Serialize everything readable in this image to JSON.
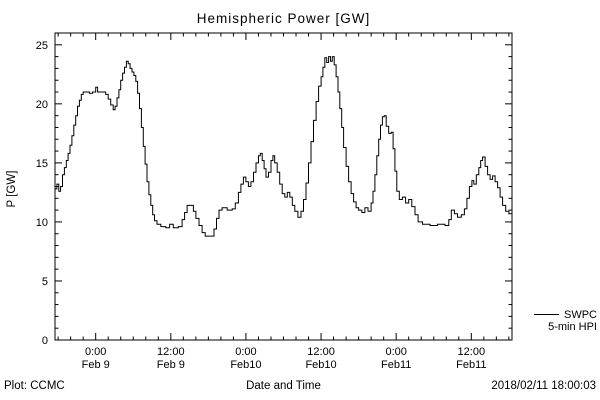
{
  "footer": {
    "left": "Plot: CCMC",
    "timestamp": "2018/02/11 18:00:03"
  },
  "chart_data": {
    "type": "line",
    "step": true,
    "title": "Hemispheric Power [GW]",
    "xlabel": "Date and Time",
    "ylabel": "P [GW]",
    "ylim": [
      0,
      26
    ],
    "yticks": [
      0,
      5,
      10,
      15,
      20,
      25
    ],
    "yminor": 1,
    "xlim_hours": [
      -6.5,
      66.5
    ],
    "xminor": 2,
    "grid": false,
    "line_color": "#000000",
    "background_color": "#ffffff",
    "legend": {
      "label1": "SWPC",
      "label2": "5-min HPI",
      "position": "right-outside-bottom"
    },
    "xticks": [
      {
        "hour": 0,
        "l1": "0:00",
        "l2": "Feb 9"
      },
      {
        "hour": 12,
        "l1": "12:00",
        "l2": "Feb 9"
      },
      {
        "hour": 24,
        "l1": "0:00",
        "l2": "Feb10"
      },
      {
        "hour": 36,
        "l1": "12:00",
        "l2": "Feb10"
      },
      {
        "hour": 48,
        "l1": "0:00",
        "l2": "Feb11"
      },
      {
        "hour": 60,
        "l1": "12:00",
        "l2": "Feb11"
      }
    ],
    "series": [
      {
        "name": "SWPC 5-min HPI",
        "color": "#000000",
        "points_hours_gw": [
          [
            -6.5,
            12.8
          ],
          [
            -6.2,
            13.2
          ],
          [
            -5.9,
            12.6
          ],
          [
            -5.6,
            13.0
          ],
          [
            -5.3,
            14.0
          ],
          [
            -5.0,
            14.6
          ],
          [
            -4.7,
            15.2
          ],
          [
            -4.4,
            15.8
          ],
          [
            -4.1,
            16.5
          ],
          [
            -3.8,
            17.3
          ],
          [
            -3.5,
            18.2
          ],
          [
            -3.2,
            19.0
          ],
          [
            -2.9,
            19.8
          ],
          [
            -2.6,
            20.3
          ],
          [
            -2.3,
            20.8
          ],
          [
            -2.0,
            21.0
          ],
          [
            -1.0,
            20.9
          ],
          [
            -0.5,
            21.0
          ],
          [
            0.0,
            21.4
          ],
          [
            0.3,
            21.0
          ],
          [
            1.2,
            21.0
          ],
          [
            1.6,
            20.8
          ],
          [
            2.0,
            20.4
          ],
          [
            2.4,
            19.9
          ],
          [
            2.8,
            19.5
          ],
          [
            3.1,
            19.8
          ],
          [
            3.4,
            20.5
          ],
          [
            3.7,
            21.2
          ],
          [
            4.0,
            22.0
          ],
          [
            4.3,
            22.6
          ],
          [
            4.6,
            23.1
          ],
          [
            4.9,
            23.6
          ],
          [
            5.2,
            23.4
          ],
          [
            5.5,
            23.0
          ],
          [
            5.8,
            22.7
          ],
          [
            6.1,
            22.4
          ],
          [
            6.4,
            21.9
          ],
          [
            6.7,
            20.9
          ],
          [
            7.0,
            19.6
          ],
          [
            7.3,
            18.0
          ],
          [
            7.6,
            16.4
          ],
          [
            7.9,
            14.9
          ],
          [
            8.2,
            13.4
          ],
          [
            8.5,
            12.3
          ],
          [
            8.8,
            11.4
          ],
          [
            9.1,
            10.6
          ],
          [
            9.4,
            10.1
          ],
          [
            9.8,
            9.8
          ],
          [
            10.4,
            9.6
          ],
          [
            11.2,
            9.5
          ],
          [
            11.8,
            9.8
          ],
          [
            12.4,
            9.5
          ],
          [
            13.2,
            9.6
          ],
          [
            13.8,
            10.2
          ],
          [
            14.2,
            10.8
          ],
          [
            14.6,
            11.4
          ],
          [
            15.2,
            11.4
          ],
          [
            15.6,
            10.9
          ],
          [
            16.0,
            10.3
          ],
          [
            16.5,
            9.7
          ],
          [
            17.0,
            9.1
          ],
          [
            17.5,
            8.8
          ],
          [
            18.4,
            8.8
          ],
          [
            18.9,
            9.4
          ],
          [
            19.3,
            10.3
          ],
          [
            19.7,
            11.0
          ],
          [
            20.2,
            11.2
          ],
          [
            21.0,
            11.0
          ],
          [
            21.8,
            11.1
          ],
          [
            22.3,
            11.6
          ],
          [
            22.8,
            12.5
          ],
          [
            23.2,
            13.2
          ],
          [
            23.6,
            13.8
          ],
          [
            24.0,
            13.4
          ],
          [
            24.4,
            13.0
          ],
          [
            24.8,
            13.4
          ],
          [
            25.2,
            14.2
          ],
          [
            25.6,
            15.0
          ],
          [
            26.0,
            15.6
          ],
          [
            26.3,
            15.8
          ],
          [
            26.6,
            15.2
          ],
          [
            26.9,
            14.5
          ],
          [
            27.2,
            13.8
          ],
          [
            27.6,
            14.2
          ],
          [
            28.0,
            15.2
          ],
          [
            28.3,
            15.6
          ],
          [
            28.6,
            15.0
          ],
          [
            29.0,
            14.2
          ],
          [
            29.4,
            13.2
          ],
          [
            29.8,
            12.4
          ],
          [
            30.2,
            12.1
          ],
          [
            30.6,
            12.5
          ],
          [
            31.0,
            12.1
          ],
          [
            31.4,
            11.4
          ],
          [
            31.8,
            10.9
          ],
          [
            32.3,
            10.4
          ],
          [
            32.8,
            10.9
          ],
          [
            33.2,
            11.9
          ],
          [
            33.6,
            13.3
          ],
          [
            34.0,
            15.0
          ],
          [
            34.4,
            16.8
          ],
          [
            34.8,
            18.6
          ],
          [
            35.2,
            20.2
          ],
          [
            35.6,
            21.5
          ],
          [
            36.0,
            22.3
          ],
          [
            36.3,
            23.1
          ],
          [
            36.6,
            23.9
          ],
          [
            36.9,
            23.5
          ],
          [
            37.2,
            24.0
          ],
          [
            37.5,
            23.6
          ],
          [
            37.8,
            24.0
          ],
          [
            38.1,
            23.3
          ],
          [
            38.4,
            22.3
          ],
          [
            38.7,
            21.0
          ],
          [
            39.0,
            19.6
          ],
          [
            39.3,
            18.0
          ],
          [
            39.6,
            16.3
          ],
          [
            40.0,
            14.7
          ],
          [
            40.4,
            13.4
          ],
          [
            40.8,
            12.4
          ],
          [
            41.2,
            11.7
          ],
          [
            41.6,
            11.2
          ],
          [
            42.0,
            11.0
          ],
          [
            42.5,
            10.8
          ],
          [
            43.0,
            11.2
          ],
          [
            43.5,
            10.9
          ],
          [
            44.0,
            11.6
          ],
          [
            44.3,
            12.6
          ],
          [
            44.6,
            14.0
          ],
          [
            44.9,
            15.6
          ],
          [
            45.2,
            17.0
          ],
          [
            45.5,
            18.2
          ],
          [
            45.8,
            18.9
          ],
          [
            46.1,
            19.0
          ],
          [
            46.4,
            18.1
          ],
          [
            46.8,
            17.5
          ],
          [
            47.2,
            17.6
          ],
          [
            47.5,
            16.2
          ],
          [
            47.8,
            14.3
          ],
          [
            48.1,
            12.6
          ],
          [
            48.5,
            11.9
          ],
          [
            49.0,
            12.1
          ],
          [
            49.5,
            11.6
          ],
          [
            50.0,
            11.9
          ],
          [
            50.5,
            11.3
          ],
          [
            51.0,
            10.6
          ],
          [
            51.5,
            10.0
          ],
          [
            52.2,
            9.8
          ],
          [
            53.4,
            9.7
          ],
          [
            54.6,
            9.8
          ],
          [
            55.8,
            9.7
          ],
          [
            56.4,
            10.2
          ],
          [
            56.8,
            11.0
          ],
          [
            57.3,
            10.7
          ],
          [
            57.8,
            10.4
          ],
          [
            58.4,
            10.6
          ],
          [
            58.9,
            11.1
          ],
          [
            59.3,
            12.0
          ],
          [
            59.7,
            13.0
          ],
          [
            60.1,
            13.5
          ],
          [
            60.4,
            13.2
          ],
          [
            60.8,
            14.0
          ],
          [
            61.2,
            14.6
          ],
          [
            61.5,
            15.2
          ],
          [
            61.8,
            15.5
          ],
          [
            62.2,
            14.7
          ],
          [
            62.6,
            14.0
          ],
          [
            63.0,
            13.6
          ],
          [
            63.4,
            13.9
          ],
          [
            63.8,
            13.4
          ],
          [
            64.2,
            12.9
          ],
          [
            64.6,
            12.1
          ],
          [
            65.0,
            11.4
          ],
          [
            65.5,
            10.9
          ],
          [
            66.0,
            10.7
          ],
          [
            66.5,
            10.7
          ]
        ]
      }
    ]
  }
}
